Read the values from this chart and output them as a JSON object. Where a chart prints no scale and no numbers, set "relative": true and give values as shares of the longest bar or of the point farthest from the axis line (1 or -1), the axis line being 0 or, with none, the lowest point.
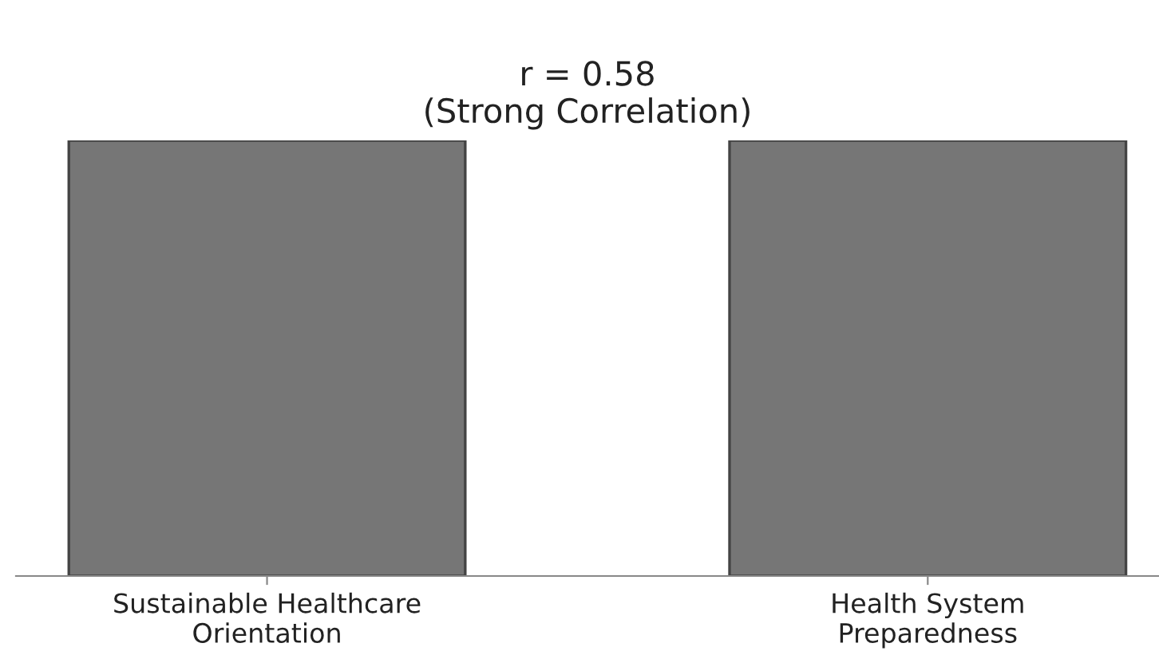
{
  "chart_data": {
    "type": "bar",
    "title": "r = 0.58\n(Strong Correlation)",
    "categories": [
      "Sustainable Healthcare\nOrientation",
      "Health System\nPreparedness"
    ],
    "values": [
      1,
      1
    ],
    "color": "#767676",
    "relative": true,
    "grid": false,
    "legend": false
  }
}
